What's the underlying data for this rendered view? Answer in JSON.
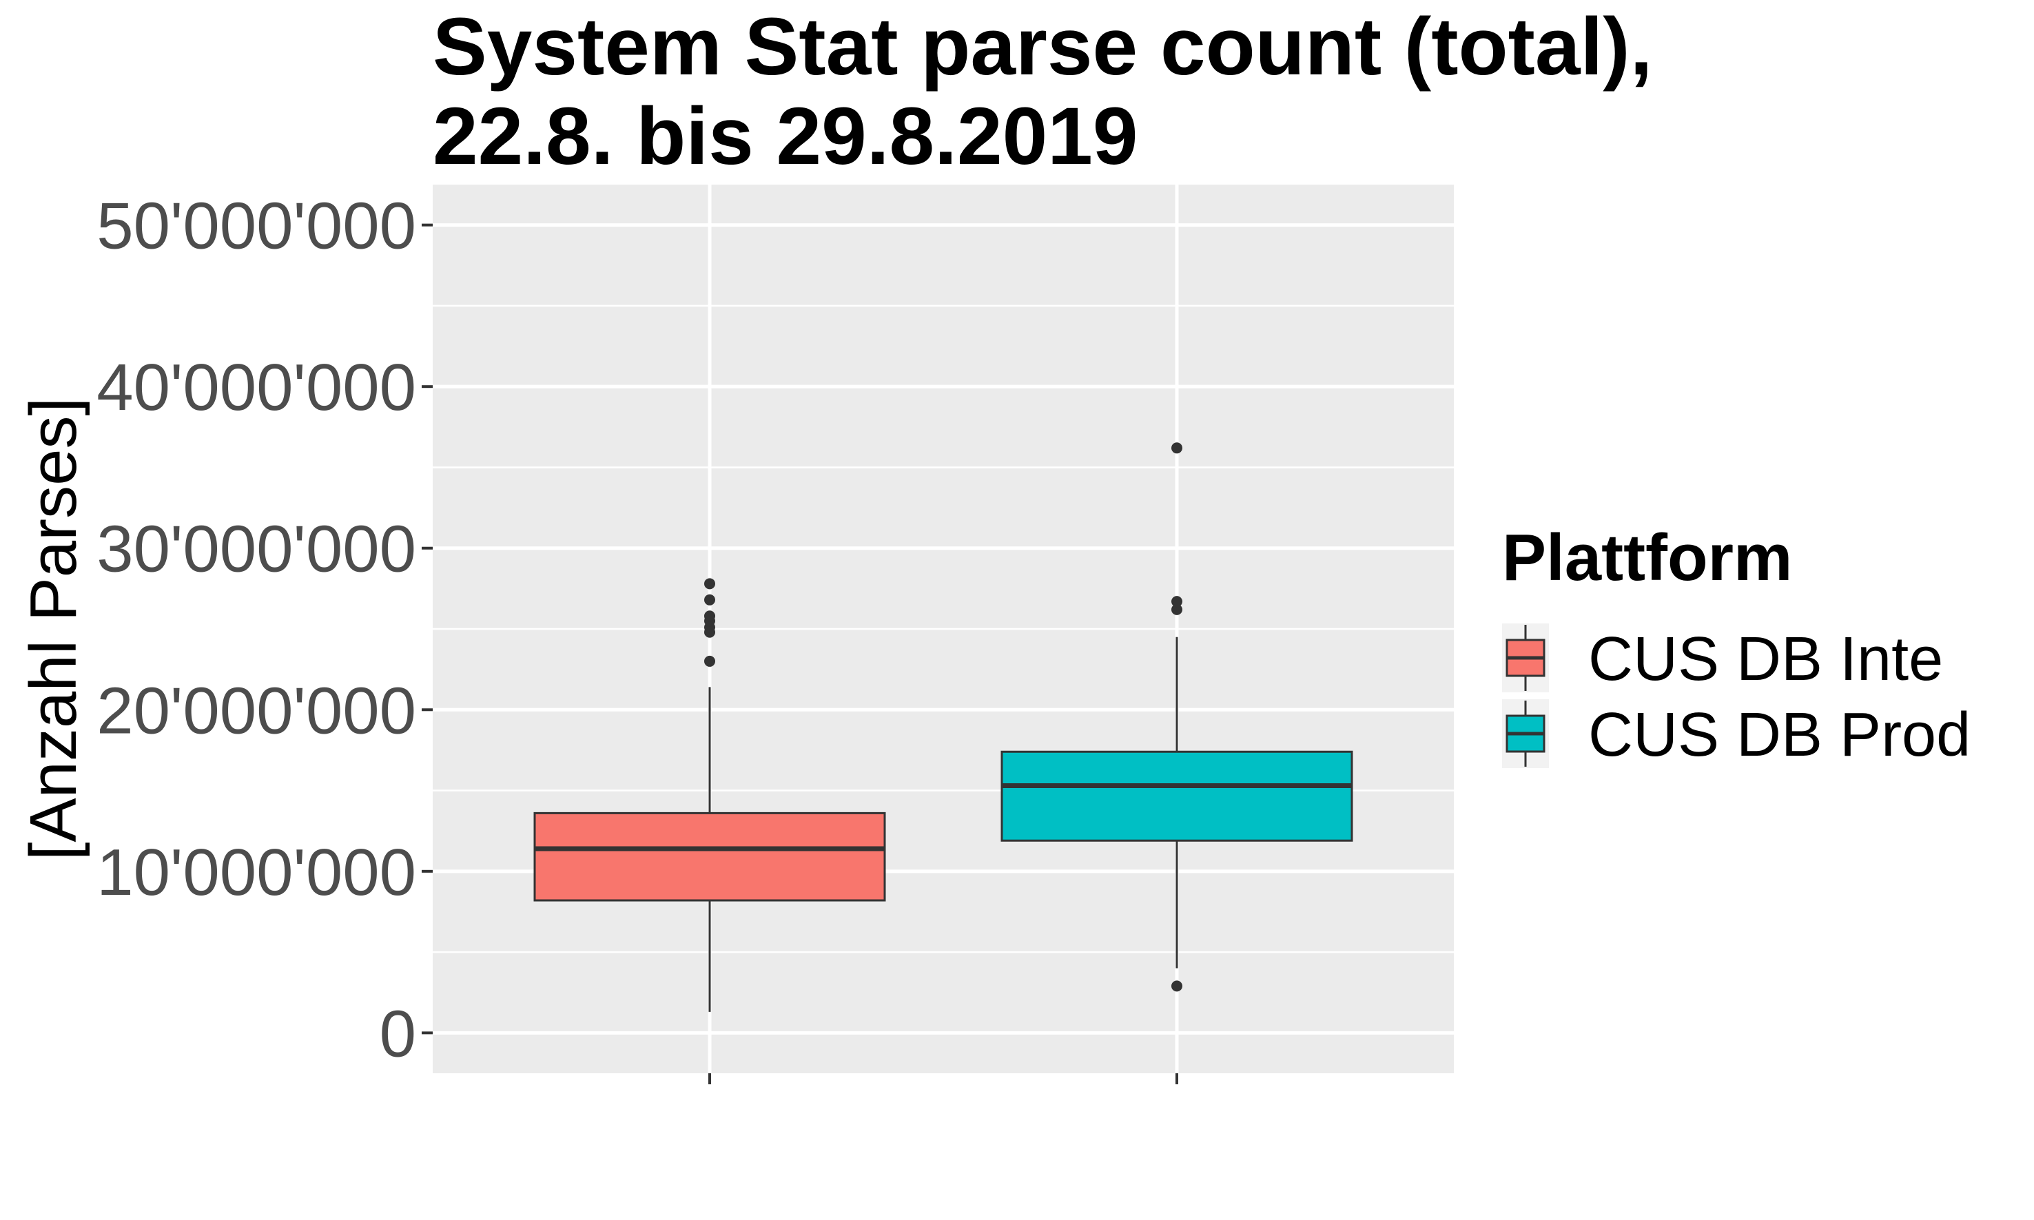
{
  "chart_data": {
    "type": "boxplot",
    "title_lines": [
      "System Stat parse count (total),",
      "22.8. bis 29.8.2019"
    ],
    "xlabel": "",
    "ylabel": "[Anzahl Parses]",
    "ylim": [
      -2500000,
      52500000
    ],
    "y_ticks": [
      {
        "value": 0,
        "label": "0"
      },
      {
        "value": 10000000,
        "label": "10'000'000"
      },
      {
        "value": 20000000,
        "label": "20'000'000"
      },
      {
        "value": 30000000,
        "label": "30'000'000"
      },
      {
        "value": 40000000,
        "label": "40'000'000"
      },
      {
        "value": 50000000,
        "label": "50'000'000"
      }
    ],
    "grid": true,
    "legend": {
      "title": "Plattform",
      "position": "right"
    },
    "series": [
      {
        "name": "CUS DB Inte",
        "color": "#F8766D",
        "whisker_low": 1300000,
        "q1": 8200000,
        "median": 11400000,
        "q3": 13600000,
        "whisker_high": 21400000,
        "outliers": [
          23000000,
          24800000,
          25100000,
          25500000,
          25800000,
          26800000,
          27800000
        ]
      },
      {
        "name": "CUS DB Prod",
        "color": "#00BFC4",
        "whisker_low": 4000000,
        "q1": 11900000,
        "median": 15300000,
        "q3": 17400000,
        "whisker_high": 24500000,
        "outliers": [
          2900000,
          26200000,
          26700000,
          36200000
        ]
      }
    ]
  }
}
